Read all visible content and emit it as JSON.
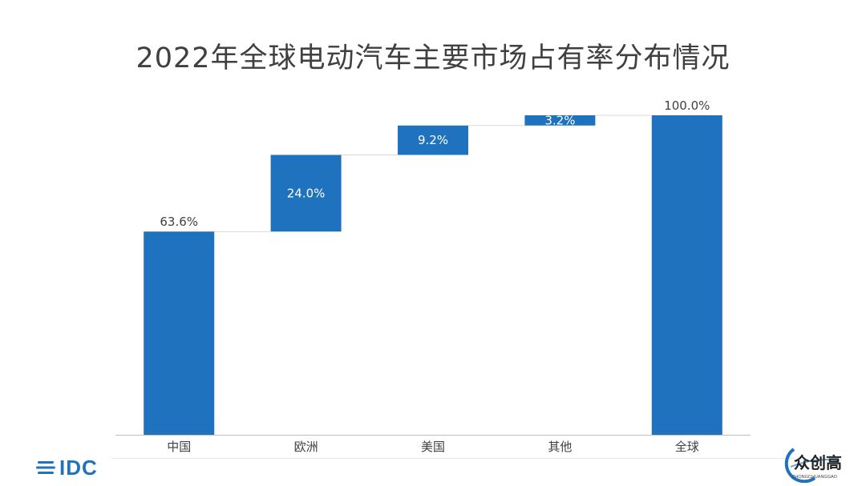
{
  "title": "2022年全球电动汽车主要市场占有率分布情况",
  "colors": {
    "bar": "#1f72bd",
    "connector": "#d9d9d9",
    "axis": "#bfbfbf",
    "text": "#404040"
  },
  "chart_data": {
    "type": "bar",
    "subtype": "waterfall",
    "title": "2022年全球电动汽车主要市场占有率分布情况",
    "categories": [
      "中国",
      "欧洲",
      "美国",
      "其他",
      "全球"
    ],
    "values": [
      63.6,
      24.0,
      9.2,
      3.2,
      100.0
    ],
    "labels": [
      "63.6%",
      "24.0%",
      "9.2%",
      "3.2%",
      "100.0%"
    ],
    "is_total": [
      false,
      false,
      false,
      false,
      true
    ],
    "ylim": [
      0,
      100
    ],
    "grid": false,
    "legend": "none"
  },
  "footer": {
    "logo_text": "IDC",
    "watermark_text": "众创高",
    "watermark_sub": "ZHONGCHUANGGAO"
  }
}
